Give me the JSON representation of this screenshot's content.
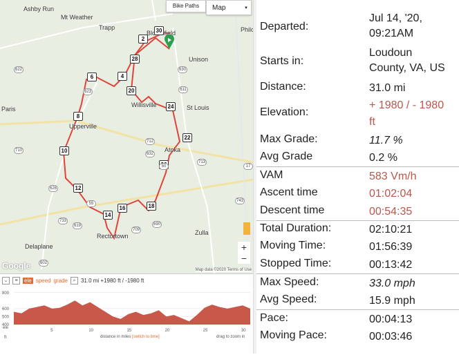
{
  "map": {
    "towns": [
      "Ashby Run",
      "Mt Weather",
      "Trapp",
      "Bloomfield",
      "Philo",
      "Unison",
      "Willisville",
      "St Louis",
      "Upperville",
      "Atoka",
      "Rectortown",
      "Zulla",
      "Delaplane",
      "Paris"
    ],
    "route_markers": [
      "2",
      "4",
      "6",
      "8",
      "10",
      "12",
      "14",
      "16",
      "18",
      "20",
      "22",
      "24",
      "26",
      "28",
      "30"
    ],
    "road_shields": [
      "622",
      "630",
      "623",
      "611",
      "710",
      "632",
      "713",
      "626",
      "50",
      "17",
      "55",
      "712",
      "733",
      "743",
      "619",
      "709",
      "690",
      "602"
    ],
    "bike_paths_label": "Bike Paths",
    "map_type": "Map",
    "attribution": "Map data ©2020   Terms of Use",
    "google": "Google",
    "zoom_in": "+",
    "zoom_out": "−"
  },
  "profile": {
    "toggles": [
      "ele",
      "speed",
      "grade"
    ],
    "summary": "31.0 mi +1980 ft / -1980 ft",
    "y_ticks": [
      "800",
      "600",
      "500",
      "400"
    ],
    "y_unit": "ft",
    "x_ticks": [
      "5",
      "10",
      "15",
      "20",
      "25",
      "30"
    ],
    "x_unit": "mi",
    "x_caption": "distance in miles",
    "x_caption_link": "[switch to time]",
    "x_right_caption": "drag to zoom in",
    "chart_data": {
      "type": "area",
      "x": [
        0,
        1,
        2,
        3,
        4,
        5,
        6,
        7,
        8,
        9,
        10,
        11,
        12,
        13,
        14,
        15,
        16,
        17,
        18,
        19,
        20,
        21,
        22,
        23,
        24,
        25,
        26,
        27,
        28,
        29,
        30,
        31
      ],
      "y": [
        560,
        540,
        600,
        620,
        640,
        600,
        610,
        650,
        700,
        640,
        680,
        620,
        560,
        500,
        470,
        530,
        560,
        520,
        540,
        580,
        500,
        520,
        480,
        440,
        520,
        610,
        650,
        620,
        600,
        620,
        640,
        600
      ],
      "series": [
        {
          "name": "ele",
          "color": "#c8584a"
        }
      ]
    }
  },
  "stats": {
    "departed_label": "Departed:",
    "departed_value_1": "Jul 14, '20,",
    "departed_value_2": "09:21AM",
    "starts_label": "Starts in:",
    "starts_value_1": "Loudoun",
    "starts_value_2": "County, VA, US",
    "distance_label": "Distance:",
    "distance_value": "31.0 mi",
    "elevation_label": "Elevation:",
    "elevation_value_1": "+ 1980 / - 1980",
    "elevation_value_2": "ft",
    "maxgrade_label": "Max Grade:",
    "maxgrade_value": "11.7 %",
    "avggrade_label": "Avg Grade",
    "avggrade_value": "0.2 %",
    "vam_label": "VAM",
    "vam_value": "583 Vm/h",
    "ascent_label": "Ascent time",
    "ascent_value": "01:02:04",
    "descent_label": "Descent time",
    "descent_value": "00:54:35",
    "totaldur_label": "Total Duration:",
    "totaldur_value": "02:10:21",
    "moving_label": "Moving Time:",
    "moving_value": "01:56:39",
    "stopped_label": "Stopped Time:",
    "stopped_value": "00:13:42",
    "maxspeed_label": "Max Speed:",
    "maxspeed_value": "33.0 mph",
    "avgspeed_label": "Avg Speed:",
    "avgspeed_value": "15.9 mph",
    "pace_label": "Pace:",
    "pace_value": "00:04:13",
    "movingpace_label": "Moving Pace:",
    "movingpace_value": "00:03:46"
  }
}
